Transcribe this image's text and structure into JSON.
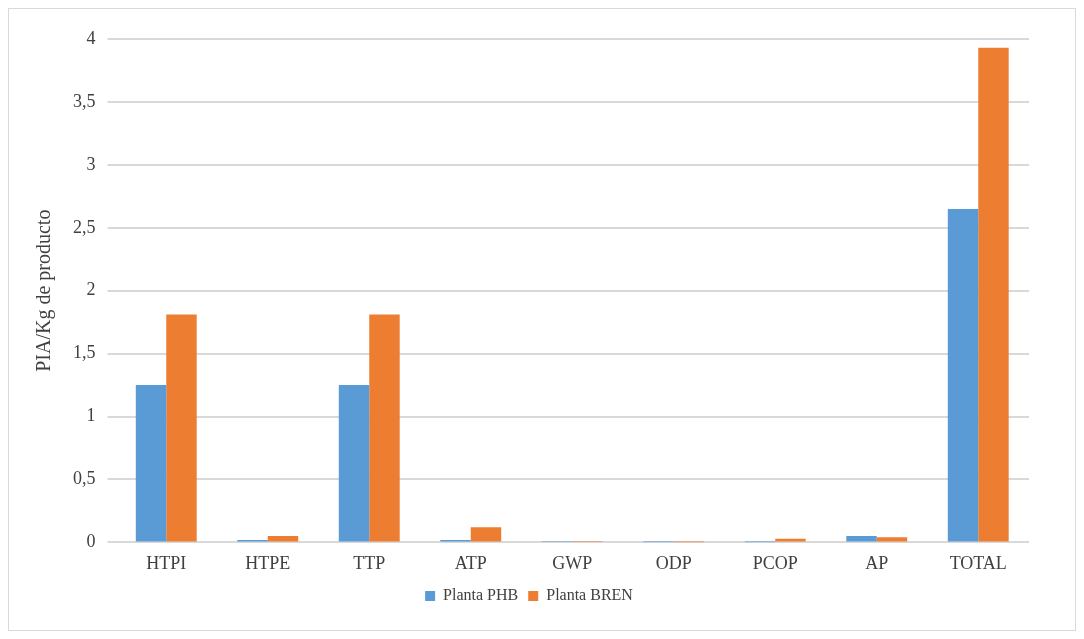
{
  "chart_data": {
    "type": "bar",
    "ylabel": "PIA/Kg de producto",
    "categories": [
      "HTPI",
      "HTPE",
      "TTP",
      "ATP",
      "GWP",
      "ODP",
      "PCOP",
      "AP",
      "TOTAL"
    ],
    "series": [
      {
        "name": "Planta PHB",
        "color": "#5b9bd5",
        "values": [
          1.25,
          0.02,
          1.25,
          0.02,
          0.003,
          0.001,
          0.002,
          0.05,
          2.65
        ]
      },
      {
        "name": "Planta BREN",
        "color": "#ed7d31",
        "values": [
          1.81,
          0.05,
          1.81,
          0.12,
          0.003,
          0.001,
          0.03,
          0.04,
          3.93
        ]
      }
    ],
    "ylim": [
      0,
      4
    ],
    "yticks": [
      {
        "value": 0,
        "label": "0"
      },
      {
        "value": 0.5,
        "label": "0,5"
      },
      {
        "value": 1,
        "label": "1"
      },
      {
        "value": 1.5,
        "label": "1,5"
      },
      {
        "value": 2,
        "label": "2"
      },
      {
        "value": 2.5,
        "label": "2,5"
      },
      {
        "value": 3,
        "label": "3"
      },
      {
        "value": 3.5,
        "label": "3,5"
      },
      {
        "value": 4,
        "label": "4"
      }
    ],
    "grid": "y",
    "legend": "bottom"
  }
}
